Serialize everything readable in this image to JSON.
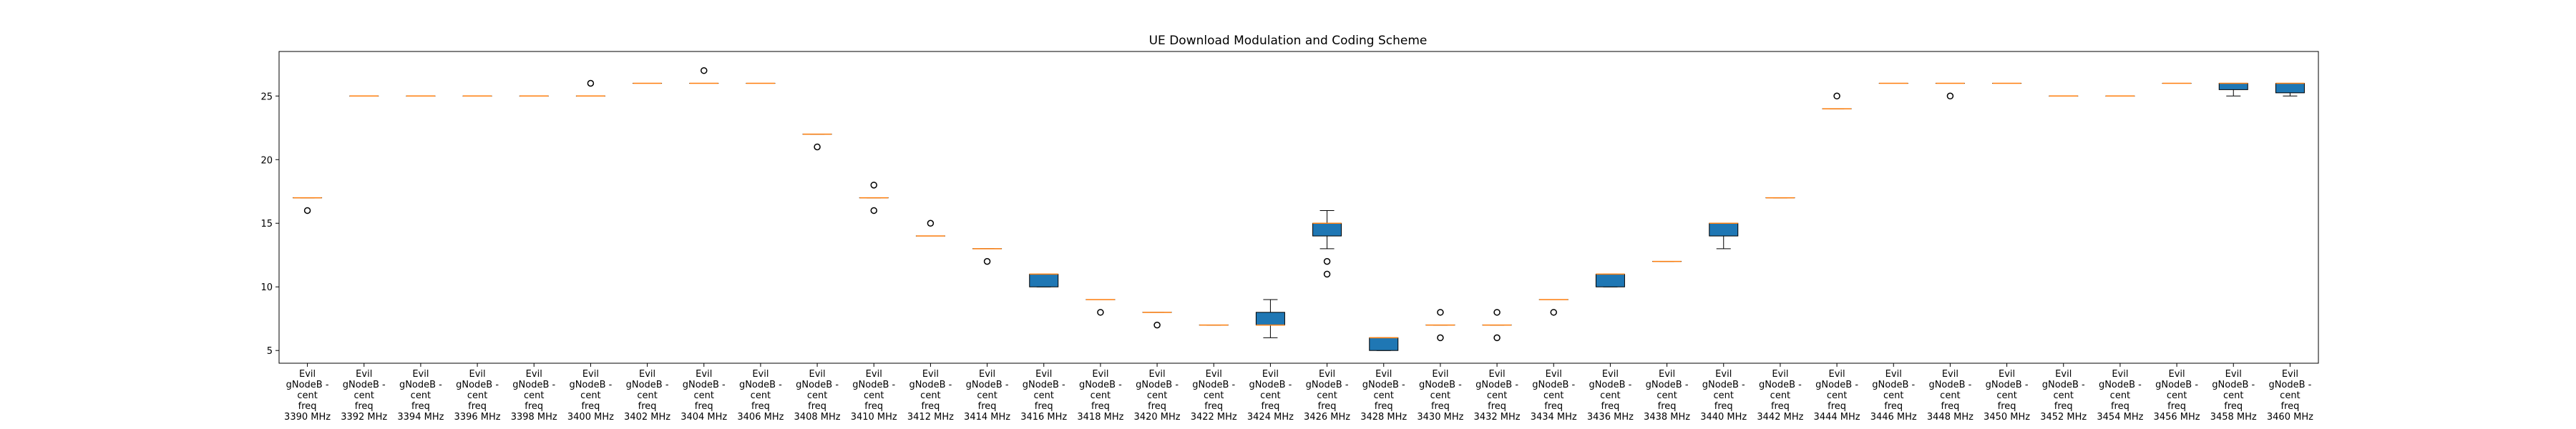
{
  "chart_data": {
    "type": "boxplot",
    "title": "UE Download Modulation and Coding Scheme",
    "xlabel": "",
    "ylabel": "",
    "ylim": [
      4,
      28.5
    ],
    "yticks": [
      5,
      10,
      15,
      20,
      25
    ],
    "grid": false,
    "colors": {
      "box_fill": "#1f77b4",
      "median": "#ff7f0e",
      "frame": "#000000"
    },
    "categories": [
      [
        "Evil",
        "gNodeB -",
        "cent",
        "freq",
        "3390 MHz"
      ],
      [
        "Evil",
        "gNodeB -",
        "cent",
        "freq",
        "3392 MHz"
      ],
      [
        "Evil",
        "gNodeB -",
        "cent",
        "freq",
        "3394 MHz"
      ],
      [
        "Evil",
        "gNodeB -",
        "cent",
        "freq",
        "3396 MHz"
      ],
      [
        "Evil",
        "gNodeB -",
        "cent",
        "freq",
        "3398 MHz"
      ],
      [
        "Evil",
        "gNodeB -",
        "cent",
        "freq",
        "3400 MHz"
      ],
      [
        "Evil",
        "gNodeB -",
        "cent",
        "freq",
        "3402 MHz"
      ],
      [
        "Evil",
        "gNodeB -",
        "cent",
        "freq",
        "3404 MHz"
      ],
      [
        "Evil",
        "gNodeB -",
        "cent",
        "freq",
        "3406 MHz"
      ],
      [
        "Evil",
        "gNodeB -",
        "cent",
        "freq",
        "3408 MHz"
      ],
      [
        "Evil",
        "gNodeB -",
        "cent",
        "freq",
        "3410 MHz"
      ],
      [
        "Evil",
        "gNodeB -",
        "cent",
        "freq",
        "3412 MHz"
      ],
      [
        "Evil",
        "gNodeB -",
        "cent",
        "freq",
        "3414 MHz"
      ],
      [
        "Evil",
        "gNodeB -",
        "cent",
        "freq",
        "3416 MHz"
      ],
      [
        "Evil",
        "gNodeB -",
        "cent",
        "freq",
        "3418 MHz"
      ],
      [
        "Evil",
        "gNodeB -",
        "cent",
        "freq",
        "3420 MHz"
      ],
      [
        "Evil",
        "gNodeB -",
        "cent",
        "freq",
        "3422 MHz"
      ],
      [
        "Evil",
        "gNodeB -",
        "cent",
        "freq",
        "3424 MHz"
      ],
      [
        "Evil",
        "gNodeB -",
        "cent",
        "freq",
        "3426 MHz"
      ],
      [
        "Evil",
        "gNodeB -",
        "cent",
        "freq",
        "3428 MHz"
      ],
      [
        "Evil",
        "gNodeB -",
        "cent",
        "freq",
        "3430 MHz"
      ],
      [
        "Evil",
        "gNodeB -",
        "cent",
        "freq",
        "3432 MHz"
      ],
      [
        "Evil",
        "gNodeB -",
        "cent",
        "freq",
        "3434 MHz"
      ],
      [
        "Evil",
        "gNodeB -",
        "cent",
        "freq",
        "3436 MHz"
      ],
      [
        "Evil",
        "gNodeB -",
        "cent",
        "freq",
        "3438 MHz"
      ],
      [
        "Evil",
        "gNodeB -",
        "cent",
        "freq",
        "3440 MHz"
      ],
      [
        "Evil",
        "gNodeB -",
        "cent",
        "freq",
        "3442 MHz"
      ],
      [
        "Evil",
        "gNodeB -",
        "cent",
        "freq",
        "3444 MHz"
      ],
      [
        "Evil",
        "gNodeB -",
        "cent",
        "freq",
        "3446 MHz"
      ],
      [
        "Evil",
        "gNodeB -",
        "cent",
        "freq",
        "3448 MHz"
      ],
      [
        "Evil",
        "gNodeB -",
        "cent",
        "freq",
        "3450 MHz"
      ],
      [
        "Evil",
        "gNodeB -",
        "cent",
        "freq",
        "3452 MHz"
      ],
      [
        "Evil",
        "gNodeB -",
        "cent",
        "freq",
        "3454 MHz"
      ],
      [
        "Evil",
        "gNodeB -",
        "cent",
        "freq",
        "3456 MHz"
      ],
      [
        "Evil",
        "gNodeB -",
        "cent",
        "freq",
        "3458 MHz"
      ],
      [
        "Evil",
        "gNodeB -",
        "cent",
        "freq",
        "3460 MHz"
      ]
    ],
    "boxes": [
      {
        "q1": 17,
        "median": 17,
        "q3": 17,
        "whisker_low": 17,
        "whisker_high": 17,
        "outliers": [
          16
        ]
      },
      {
        "q1": 25,
        "median": 25,
        "q3": 25,
        "whisker_low": 25,
        "whisker_high": 25,
        "outliers": []
      },
      {
        "q1": 25,
        "median": 25,
        "q3": 25,
        "whisker_low": 25,
        "whisker_high": 25,
        "outliers": []
      },
      {
        "q1": 25,
        "median": 25,
        "q3": 25,
        "whisker_low": 25,
        "whisker_high": 25,
        "outliers": []
      },
      {
        "q1": 25,
        "median": 25,
        "q3": 25,
        "whisker_low": 25,
        "whisker_high": 25,
        "outliers": []
      },
      {
        "q1": 25,
        "median": 25,
        "q3": 25,
        "whisker_low": 25,
        "whisker_high": 25,
        "outliers": [
          26
        ]
      },
      {
        "q1": 26,
        "median": 26,
        "q3": 26,
        "whisker_low": 26,
        "whisker_high": 26,
        "outliers": []
      },
      {
        "q1": 26,
        "median": 26,
        "q3": 26,
        "whisker_low": 26,
        "whisker_high": 26,
        "outliers": [
          27
        ]
      },
      {
        "q1": 26,
        "median": 26,
        "q3": 26,
        "whisker_low": 26,
        "whisker_high": 26,
        "outliers": []
      },
      {
        "q1": 22,
        "median": 22,
        "q3": 22,
        "whisker_low": 22,
        "whisker_high": 22,
        "outliers": [
          21
        ]
      },
      {
        "q1": 17,
        "median": 17,
        "q3": 17,
        "whisker_low": 17,
        "whisker_high": 17,
        "outliers": [
          18,
          16
        ]
      },
      {
        "q1": 14,
        "median": 14,
        "q3": 14,
        "whisker_low": 14,
        "whisker_high": 14,
        "outliers": [
          15
        ]
      },
      {
        "q1": 13,
        "median": 13,
        "q3": 13,
        "whisker_low": 13,
        "whisker_high": 13,
        "outliers": [
          12
        ]
      },
      {
        "q1": 10,
        "median": 11,
        "q3": 11,
        "whisker_low": 10,
        "whisker_high": 11,
        "outliers": []
      },
      {
        "q1": 9,
        "median": 9,
        "q3": 9,
        "whisker_low": 9,
        "whisker_high": 9,
        "outliers": [
          8
        ]
      },
      {
        "q1": 8,
        "median": 8,
        "q3": 8,
        "whisker_low": 8,
        "whisker_high": 8,
        "outliers": [
          7
        ]
      },
      {
        "q1": 7,
        "median": 7,
        "q3": 7,
        "whisker_low": 7,
        "whisker_high": 7,
        "outliers": []
      },
      {
        "q1": 7,
        "median": 7,
        "q3": 8,
        "whisker_low": 6,
        "whisker_high": 9,
        "outliers": []
      },
      {
        "q1": 14,
        "median": 15,
        "q3": 15,
        "whisker_low": 13,
        "whisker_high": 16,
        "outliers": [
          12,
          11
        ]
      },
      {
        "q1": 5,
        "median": 6,
        "q3": 6,
        "whisker_low": 5,
        "whisker_high": 6,
        "outliers": []
      },
      {
        "q1": 7,
        "median": 7,
        "q3": 7,
        "whisker_low": 7,
        "whisker_high": 7,
        "outliers": [
          8,
          6
        ]
      },
      {
        "q1": 7,
        "median": 7,
        "q3": 7,
        "whisker_low": 7,
        "whisker_high": 7,
        "outliers": [
          8,
          6
        ]
      },
      {
        "q1": 9,
        "median": 9,
        "q3": 9,
        "whisker_low": 9,
        "whisker_high": 9,
        "outliers": [
          8
        ]
      },
      {
        "q1": 10,
        "median": 11,
        "q3": 11,
        "whisker_low": 10,
        "whisker_high": 11,
        "outliers": []
      },
      {
        "q1": 12,
        "median": 12,
        "q3": 12,
        "whisker_low": 12,
        "whisker_high": 12,
        "outliers": []
      },
      {
        "q1": 14,
        "median": 15,
        "q3": 15,
        "whisker_low": 13,
        "whisker_high": 15,
        "outliers": []
      },
      {
        "q1": 17,
        "median": 17,
        "q3": 17,
        "whisker_low": 17,
        "whisker_high": 17,
        "outliers": []
      },
      {
        "q1": 24,
        "median": 24,
        "q3": 24,
        "whisker_low": 24,
        "whisker_high": 24,
        "outliers": [
          25
        ]
      },
      {
        "q1": 26,
        "median": 26,
        "q3": 26,
        "whisker_low": 26,
        "whisker_high": 26,
        "outliers": []
      },
      {
        "q1": 26,
        "median": 26,
        "q3": 26,
        "whisker_low": 26,
        "whisker_high": 26,
        "outliers": [
          25
        ]
      },
      {
        "q1": 26,
        "median": 26,
        "q3": 26,
        "whisker_low": 26,
        "whisker_high": 26,
        "outliers": []
      },
      {
        "q1": 25,
        "median": 25,
        "q3": 25,
        "whisker_low": 25,
        "whisker_high": 25,
        "outliers": []
      },
      {
        "q1": 25,
        "median": 25,
        "q3": 25,
        "whisker_low": 25,
        "whisker_high": 25,
        "outliers": []
      },
      {
        "q1": 26,
        "median": 26,
        "q3": 26,
        "whisker_low": 26,
        "whisker_high": 26,
        "outliers": []
      },
      {
        "q1": 25.5,
        "median": 26,
        "q3": 26,
        "whisker_low": 25,
        "whisker_high": 26,
        "outliers": []
      },
      {
        "q1": 25.25,
        "median": 26,
        "q3": 26,
        "whisker_low": 25,
        "whisker_high": 26,
        "outliers": []
      }
    ]
  }
}
